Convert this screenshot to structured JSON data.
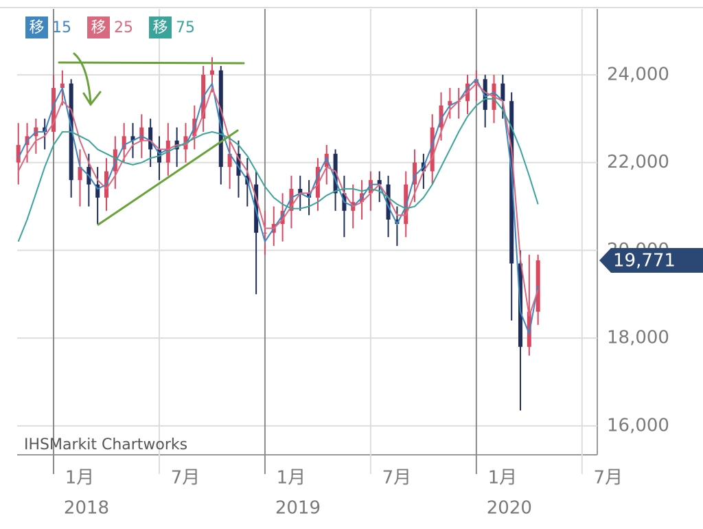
{
  "chart_data": {
    "type": "candlestick",
    "watermark": "IHSMarkit Chartworks",
    "legend_marker": "移",
    "categories": [
      null,
      null,
      null,
      null,
      "1月",
      null,
      null,
      null,
      null,
      null,
      null,
      null,
      null,
      null,
      null,
      null,
      "7月",
      null,
      null,
      null,
      null,
      null,
      null,
      null,
      null,
      null,
      null,
      null,
      "1月",
      null,
      null,
      null,
      null,
      null,
      null,
      null,
      null,
      null,
      null,
      null,
      "7月",
      null,
      null,
      null,
      null,
      null,
      null,
      null,
      null,
      null,
      null,
      null,
      "1月",
      null,
      null,
      null,
      null,
      null,
      null,
      null,
      null,
      null,
      null,
      null,
      "7月",
      null
    ],
    "x_years": [
      null,
      null,
      null,
      null,
      "2018",
      null,
      null,
      null,
      null,
      null,
      null,
      null,
      null,
      null,
      null,
      null,
      null,
      null,
      null,
      null,
      null,
      null,
      null,
      null,
      null,
      null,
      null,
      null,
      "2019",
      null,
      null,
      null,
      null,
      null,
      null,
      null,
      null,
      null,
      null,
      null,
      null,
      null,
      null,
      null,
      null,
      null,
      null,
      null,
      null,
      null,
      null,
      null,
      "2020",
      null,
      null,
      null,
      null,
      null,
      null,
      null,
      null,
      null,
      null,
      null,
      null,
      null
    ],
    "ohlc": {
      "open": [
        22000,
        22400,
        22600,
        22800,
        22700,
        23700,
        23800,
        21600,
        21900,
        21500,
        21200,
        21800,
        22300,
        22600,
        22500,
        22800,
        22300,
        22000,
        22500,
        22300,
        22600,
        23000,
        24000,
        24100,
        21900,
        22200,
        21700,
        21500,
        20400,
        20400,
        20600,
        20900,
        21400,
        21300,
        21200,
        21900,
        22200,
        21300,
        20900,
        21100,
        21300,
        21600,
        21500,
        20700,
        20600,
        21500,
        22000,
        21800,
        22800,
        23300,
        23400,
        23400,
        23800,
        23900,
        23200,
        23800,
        23400,
        19700,
        17800,
        18600,
        null,
        null,
        null,
        null,
        null,
        null
      ],
      "high": [
        22900,
        22900,
        23000,
        23000,
        24000,
        24100,
        23900,
        22300,
        22200,
        21900,
        22100,
        22600,
        22900,
        22900,
        23100,
        23000,
        22600,
        22900,
        22800,
        22900,
        23300,
        24200,
        24400,
        24200,
        22600,
        22500,
        22100,
        21800,
        20900,
        21000,
        21300,
        21700,
        21700,
        21600,
        22100,
        22400,
        22300,
        21700,
        21500,
        21600,
        21800,
        21800,
        21700,
        21000,
        21800,
        22300,
        22200,
        23100,
        23600,
        23700,
        23700,
        24000,
        24100,
        24000,
        24000,
        24000,
        23600,
        20000,
        19900,
        19900,
        null,
        null,
        null,
        null,
        null,
        null
      ],
      "low": [
        21500,
        22000,
        22200,
        22300,
        22500,
        23300,
        21200,
        21000,
        21000,
        20600,
        20900,
        21400,
        22000,
        22100,
        22100,
        21900,
        21600,
        21700,
        21900,
        22000,
        22300,
        22700,
        23600,
        21500,
        21400,
        21200,
        21000,
        19000,
        19900,
        20100,
        20200,
        20500,
        20900,
        20800,
        20900,
        21500,
        20900,
        20300,
        20500,
        20700,
        20900,
        21100,
        20300,
        20100,
        20300,
        21100,
        21400,
        21500,
        22500,
        23000,
        23000,
        23100,
        23400,
        22800,
        22900,
        23000,
        18400,
        16350,
        17600,
        18300,
        null,
        null,
        null,
        null,
        null,
        null
      ],
      "close": [
        22400,
        22600,
        22800,
        22700,
        23700,
        23800,
        21600,
        21900,
        21500,
        21200,
        21800,
        22300,
        22600,
        22500,
        22800,
        22300,
        22000,
        22500,
        22300,
        22600,
        23000,
        24000,
        24100,
        21900,
        22200,
        21700,
        21500,
        20400,
        20400,
        20600,
        20900,
        21400,
        21300,
        21200,
        21900,
        22200,
        21300,
        20900,
        21100,
        21300,
        21600,
        21500,
        20700,
        20600,
        21500,
        22000,
        21800,
        22800,
        23300,
        23400,
        23400,
        23800,
        23900,
        23200,
        23800,
        23400,
        19700,
        17800,
        18600,
        19771,
        null,
        null,
        null,
        null,
        null,
        null
      ]
    },
    "up_color": "#d9485f",
    "down_color": "#1f2d5a",
    "series": [
      {
        "name": "15",
        "color": "#3f86bf",
        "values": [
          22100,
          22500,
          22700,
          22700,
          23300,
          23700,
          22800,
          21900,
          21700,
          21400,
          21500,
          22000,
          22400,
          22500,
          22600,
          22500,
          22200,
          22300,
          22400,
          22400,
          22800,
          23500,
          23800,
          22800,
          22200,
          21900,
          21600,
          20900,
          20200,
          20500,
          20800,
          21200,
          21300,
          21200,
          21700,
          22100,
          21600,
          21100,
          21000,
          21200,
          21500,
          21500,
          21000,
          20600,
          21000,
          21700,
          21900,
          22400,
          23000,
          23300,
          23400,
          23700,
          23900,
          23500,
          23600,
          23400,
          21800,
          18600,
          18100,
          19200,
          null,
          null,
          null,
          null,
          null,
          null
        ]
      },
      {
        "name": "25",
        "color": "#d9697f",
        "values": [
          21800,
          22200,
          22500,
          22600,
          22900,
          23400,
          23200,
          22500,
          22000,
          21600,
          21400,
          21700,
          22100,
          22400,
          22500,
          22500,
          22300,
          22300,
          22400,
          22400,
          22600,
          23100,
          23700,
          23200,
          22500,
          22100,
          21800,
          21200,
          20500,
          20500,
          20700,
          21000,
          21300,
          21300,
          21500,
          21900,
          21800,
          21300,
          21000,
          21100,
          21300,
          21500,
          21200,
          20800,
          20800,
          21300,
          21800,
          22100,
          22700,
          23200,
          23400,
          23600,
          23800,
          23600,
          23500,
          23400,
          22300,
          19800,
          18500,
          19100,
          null,
          null,
          null,
          null,
          null,
          null
        ]
      },
      {
        "name": "75",
        "color": "#3aa39a",
        "values": [
          20200,
          20700,
          21300,
          21900,
          22400,
          22700,
          22700,
          22600,
          22500,
          22300,
          22200,
          22100,
          22000,
          21950,
          22000,
          22100,
          22150,
          22250,
          22350,
          22450,
          22550,
          22650,
          22700,
          22650,
          22550,
          22400,
          22150,
          21800,
          21450,
          21200,
          21050,
          20950,
          20950,
          21000,
          21100,
          21250,
          21350,
          21400,
          21400,
          21350,
          21400,
          21350,
          21200,
          21050,
          20950,
          21000,
          21200,
          21500,
          21900,
          22300,
          22700,
          23050,
          23300,
          23450,
          23450,
          23200,
          22800,
          22300,
          21700,
          21050,
          null,
          null,
          null,
          null,
          null,
          null
        ]
      }
    ],
    "last_price": {
      "value": 19771,
      "label": "19,771"
    },
    "last_price_color": "#2b4774",
    "ylim": [
      15340,
      25500
    ],
    "yticks": [
      {
        "value": 16000,
        "label": "16,000"
      },
      {
        "value": 18000,
        "label": "18,000"
      },
      {
        "value": 20000,
        "label": "20,000"
      },
      {
        "value": 22000,
        "label": "22,000"
      },
      {
        "value": 24000,
        "label": "24,000"
      }
    ],
    "grid": true
  }
}
